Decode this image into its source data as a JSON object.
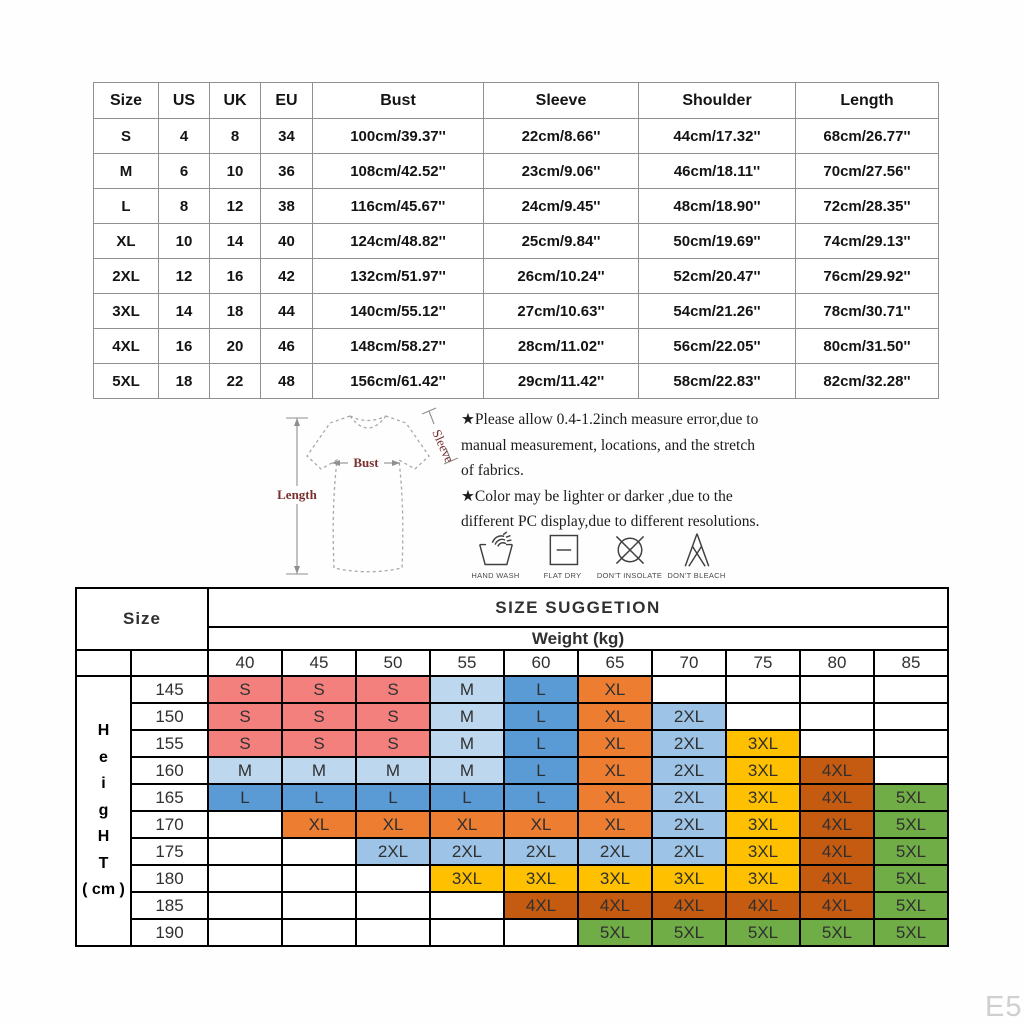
{
  "size_table": {
    "headers": [
      "Size",
      "US",
      "UK",
      "EU",
      "Bust",
      "Sleeve",
      "Shoulder",
      "Length"
    ],
    "rows": [
      [
        "S",
        "4",
        "8",
        "34",
        "100cm/39.37''",
        "22cm/8.66''",
        "44cm/17.32''",
        "68cm/26.77''"
      ],
      [
        "M",
        "6",
        "10",
        "36",
        "108cm/42.52''",
        "23cm/9.06''",
        "46cm/18.11''",
        "70cm/27.56''"
      ],
      [
        "L",
        "8",
        "12",
        "38",
        "116cm/45.67''",
        "24cm/9.45''",
        "48cm/18.90''",
        "72cm/28.35''"
      ],
      [
        "XL",
        "10",
        "14",
        "40",
        "124cm/48.82''",
        "25cm/9.84''",
        "50cm/19.69''",
        "74cm/29.13''"
      ],
      [
        "2XL",
        "12",
        "16",
        "42",
        "132cm/51.97''",
        "26cm/10.24''",
        "52cm/20.47''",
        "76cm/29.92''"
      ],
      [
        "3XL",
        "14",
        "18",
        "44",
        "140cm/55.12''",
        "27cm/10.63''",
        "54cm/21.26''",
        "78cm/30.71''"
      ],
      [
        "4XL",
        "16",
        "20",
        "46",
        "148cm/58.27''",
        "28cm/11.02''",
        "56cm/22.05''",
        "80cm/31.50''"
      ],
      [
        "5XL",
        "18",
        "22",
        "48",
        "156cm/61.42''",
        "29cm/11.42''",
        "58cm/22.83''",
        "82cm/32.28''"
      ]
    ]
  },
  "diagram": {
    "length_label": "Length",
    "bust_label": "Bust",
    "sleeve_label": "Sleeve",
    "label_color": "#7b3030"
  },
  "notes": [
    "★Please allow 0.4-1.2inch measure error,due to manual measurement, locations, and the stretch of fabrics.",
    "★Color may be lighter or darker ,due to the different PC display,due to different resolutions."
  ],
  "care_icons": [
    {
      "name": "hand-wash-icon",
      "label": "HAND WASH"
    },
    {
      "name": "flat-dry-icon",
      "label": "FLAT  DRY"
    },
    {
      "name": "dont-insolate-icon",
      "label": "DON'T INSOLATE"
    },
    {
      "name": "dont-bleach-icon",
      "label": "DON'T BLEACH"
    }
  ],
  "suggestion_table": {
    "corner_label": "Size",
    "title": "SIZE SUGGETION",
    "weight_label": "Weight (kg)",
    "weights": [
      "40",
      "45",
      "50",
      "55",
      "60",
      "65",
      "70",
      "75",
      "80",
      "85"
    ],
    "height_label_lines": [
      "H",
      "e",
      "i",
      "g",
      "H",
      "T",
      "( cm )"
    ],
    "heights": [
      "145",
      "150",
      "155",
      "160",
      "165",
      "170",
      "175",
      "180",
      "185",
      "190"
    ],
    "grid": [
      [
        "S",
        "S",
        "S",
        "M",
        "L",
        "XL",
        "",
        "",
        "",
        ""
      ],
      [
        "S",
        "S",
        "S",
        "M",
        "L",
        "XL",
        "2XL",
        "",
        "",
        ""
      ],
      [
        "S",
        "S",
        "S",
        "M",
        "L",
        "XL",
        "2XL",
        "3XL",
        "",
        ""
      ],
      [
        "M",
        "M",
        "M",
        "M",
        "L",
        "XL",
        "2XL",
        "3XL",
        "4XL",
        ""
      ],
      [
        "L",
        "L",
        "L",
        "L",
        "L",
        "XL",
        "2XL",
        "3XL",
        "4XL",
        "5XL"
      ],
      [
        "",
        "XL",
        "XL",
        "XL",
        "XL",
        "XL",
        "2XL",
        "3XL",
        "4XL",
        "5XL"
      ],
      [
        "",
        "",
        "2XL",
        "2XL",
        "2XL",
        "2XL",
        "2XL",
        "3XL",
        "4XL",
        "5XL"
      ],
      [
        "",
        "",
        "",
        "3XL",
        "3XL",
        "3XL",
        "3XL",
        "3XL",
        "4XL",
        "5XL"
      ],
      [
        "",
        "",
        "",
        "",
        "4XL",
        "4XL",
        "4XL",
        "4XL",
        "4XL",
        "5XL"
      ],
      [
        "",
        "",
        "",
        "",
        "",
        "5XL",
        "5XL",
        "5XL",
        "5XL",
        "5XL"
      ]
    ],
    "size_colors": {
      "S": "#F4807E",
      "M": "#BDD7EE",
      "L": "#5B9BD5",
      "XL": "#ED7D31",
      "2XL": "#9DC3E6",
      "3XL": "#FFC000",
      "4XL": "#C55A11",
      "5XL": "#70AD47"
    }
  },
  "watermark": "E5"
}
